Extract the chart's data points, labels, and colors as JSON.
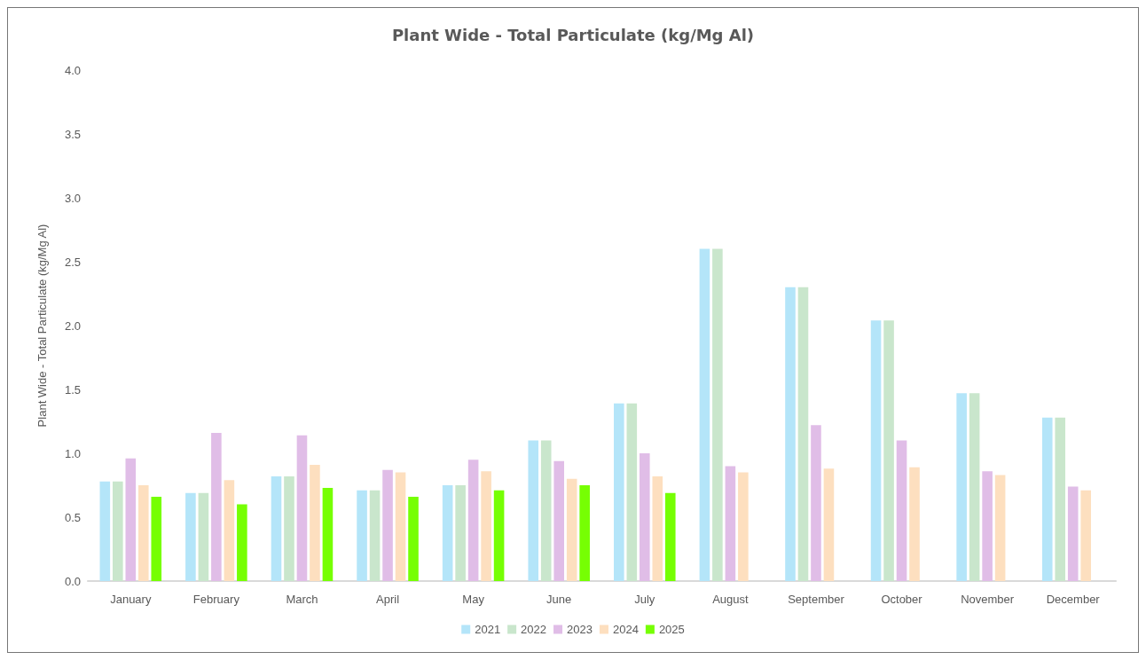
{
  "chart_data": {
    "type": "bar",
    "title": "Plant Wide - Total Particulate (kg/Mg Al)",
    "ylabel": "Plant Wide - Total Particulate (kg/Mg Al)",
    "categories": [
      "January",
      "February",
      "March",
      "April",
      "May",
      "June",
      "July",
      "August",
      "September",
      "October",
      "November",
      "December"
    ],
    "series": [
      {
        "name": "2021",
        "color": "#b4e5f9",
        "values": [
          0.78,
          0.69,
          0.82,
          0.71,
          0.75,
          1.1,
          1.39,
          2.6,
          2.3,
          2.04,
          1.47,
          1.28
        ]
      },
      {
        "name": "2022",
        "color": "#c9e6cc",
        "values": [
          0.78,
          0.69,
          0.82,
          0.71,
          0.75,
          1.1,
          1.39,
          2.6,
          2.3,
          2.04,
          1.47,
          1.28
        ]
      },
      {
        "name": "2023",
        "color": "#e0bde7",
        "values": [
          0.96,
          1.16,
          1.14,
          0.87,
          0.95,
          0.94,
          1.0,
          0.9,
          1.22,
          1.1,
          0.86,
          0.74
        ]
      },
      {
        "name": "2024",
        "color": "#fddfbf",
        "values": [
          0.75,
          0.79,
          0.91,
          0.85,
          0.86,
          0.8,
          0.82,
          0.85,
          0.88,
          0.89,
          0.83,
          0.71
        ]
      },
      {
        "name": "2025",
        "color": "#76ff03",
        "values": [
          0.66,
          0.6,
          0.73,
          0.66,
          0.71,
          0.75,
          0.69,
          null,
          null,
          null,
          null,
          null
        ]
      }
    ],
    "ylim": [
      0,
      4
    ],
    "yticks": [
      {
        "value": 0,
        "label": "0.0"
      },
      {
        "value": 0.5,
        "label": "0.5"
      },
      {
        "value": 1,
        "label": "1.0"
      },
      {
        "value": 1.5,
        "label": "1.5"
      },
      {
        "value": 2,
        "label": "2.0"
      },
      {
        "value": 2.5,
        "label": "2.5"
      },
      {
        "value": 3,
        "label": "3.0"
      },
      {
        "value": 3.5,
        "label": "3.5"
      },
      {
        "value": 4,
        "label": "4.0"
      }
    ],
    "grid": false,
    "legend": "bottom"
  }
}
